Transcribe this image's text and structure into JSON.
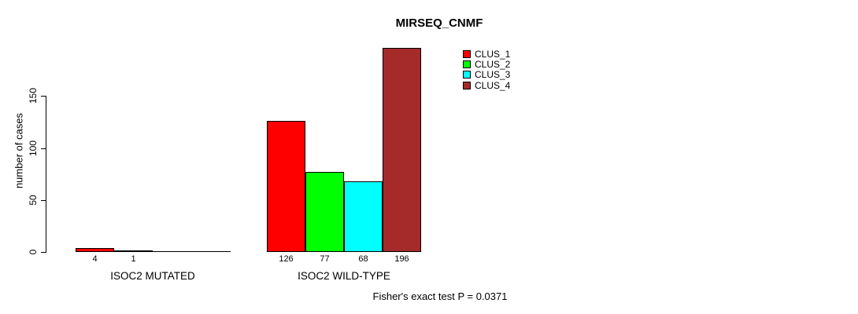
{
  "chart_data": {
    "type": "bar",
    "title": "MIRSEQ_CNMF",
    "ylabel": "number of cases",
    "xlabel": "",
    "yticks": [
      0,
      50,
      100,
      150
    ],
    "ylim": [
      0,
      200
    ],
    "grid": false,
    "legend_position": "top-right",
    "categories": [
      "ISOC2 MUTATED",
      "ISOC2 WILD-TYPE"
    ],
    "groups": [
      {
        "label": "ISOC2 MUTATED",
        "values": [
          4,
          1,
          0,
          0
        ],
        "bar_labels": [
          "4",
          "1",
          "",
          ""
        ]
      },
      {
        "label": "ISOC2 WILD-TYPE",
        "values": [
          126,
          77,
          68,
          196
        ],
        "bar_labels": [
          "126",
          "77",
          "68",
          "196"
        ]
      }
    ],
    "series": [
      {
        "name": "CLUS_1",
        "values": [
          4,
          126
        ],
        "color": "#FF0000"
      },
      {
        "name": "CLUS_2",
        "values": [
          1,
          77
        ],
        "color": "#00FF00"
      },
      {
        "name": "CLUS_3",
        "values": [
          0,
          68
        ],
        "color": "#00FFFF"
      },
      {
        "name": "CLUS_4",
        "values": [
          0,
          196
        ],
        "color": "#A52A2A"
      }
    ],
    "legend": [
      {
        "label": "CLUS_1",
        "color": "#FF0000"
      },
      {
        "label": "CLUS_2",
        "color": "#00FF00"
      },
      {
        "label": "CLUS_3",
        "color": "#00FFFF"
      },
      {
        "label": "CLUS_4",
        "color": "#A52A2A"
      }
    ],
    "annotation": "Fisher's exact test P = 0.0371"
  },
  "colors": {
    "background": "#FFFFFF",
    "axis": "#000000",
    "text": "#000000"
  }
}
